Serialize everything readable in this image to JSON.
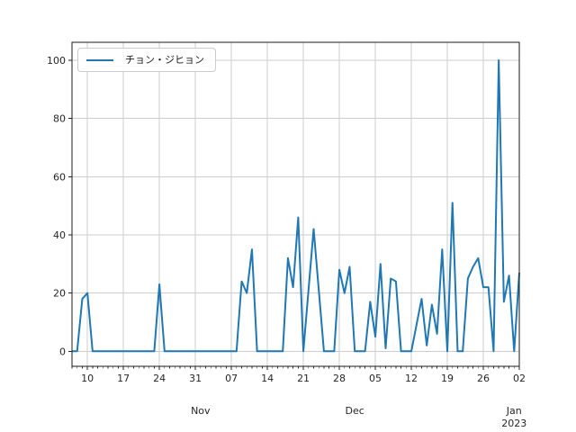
{
  "legend": {
    "label": "チョン・ジヒョン",
    "position": "upper left"
  },
  "chart_data": {
    "type": "line",
    "title": "",
    "xlabel": "",
    "ylabel": "",
    "grid": true,
    "legend_position": "upper left",
    "line_color": "#1f77b4",
    "grid_color": "#cdcdcd",
    "spine_color": "#1a1a1a",
    "tick_color": "#262626",
    "text_color": "#262626",
    "background": "#ffffff",
    "start_date": "2022-10-07",
    "end_date": "2023-01-02",
    "frequency": "daily",
    "series": [
      {
        "name": "チョン・ジヒョン",
        "values": [
          0,
          0,
          18,
          20,
          0,
          0,
          0,
          0,
          0,
          0,
          0,
          0,
          0,
          0,
          0,
          0,
          0,
          23,
          0,
          0,
          0,
          0,
          0,
          0,
          0,
          0,
          0,
          0,
          0,
          0,
          0,
          0,
          0,
          24,
          20,
          35,
          0,
          0,
          0,
          0,
          0,
          0,
          32,
          22,
          46,
          0,
          21,
          42,
          21,
          0,
          0,
          0,
          28,
          20,
          29,
          0,
          0,
          0,
          17,
          5,
          30,
          1,
          25,
          24,
          0,
          0,
          0,
          9,
          18,
          2,
          16,
          6,
          35,
          0,
          51,
          0,
          0,
          25,
          29,
          32,
          22,
          22,
          0,
          100,
          17,
          26,
          0,
          27
        ]
      }
    ],
    "y_ticks": [
      0,
      20,
      40,
      60,
      80,
      100
    ],
    "ylim": [
      -5.17,
      106.18
    ],
    "x_major_ticks": [
      {
        "day": 3,
        "label": "10"
      },
      {
        "day": 10,
        "label": "17"
      },
      {
        "day": 17,
        "label": "24"
      },
      {
        "day": 24,
        "label": "31"
      },
      {
        "day": 31,
        "label": "07"
      },
      {
        "day": 38,
        "label": "14"
      },
      {
        "day": 45,
        "label": "21"
      },
      {
        "day": 52,
        "label": "28"
      },
      {
        "day": 59,
        "label": "05"
      },
      {
        "day": 66,
        "label": "12"
      },
      {
        "day": 73,
        "label": "19"
      },
      {
        "day": 80,
        "label": "26"
      },
      {
        "day": 87,
        "label": "02"
      }
    ],
    "x_month_labels": [
      {
        "day": 25,
        "label": "Nov"
      },
      {
        "day": 55,
        "label": "Dec"
      },
      {
        "day": 86,
        "label": "Jan",
        "sublabel": "2023"
      }
    ],
    "x_minor_ticks": "every day"
  }
}
